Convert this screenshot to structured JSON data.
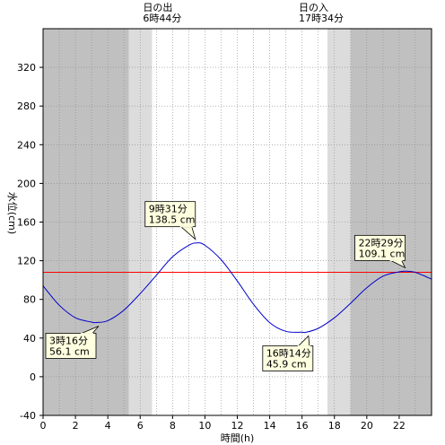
{
  "chart_data": {
    "type": "line",
    "xlabel": "時間(h)",
    "ylabel": "水位(cm)",
    "xlim": [
      0,
      24
    ],
    "ylim": [
      -40,
      360
    ],
    "x_ticks": [
      "0",
      "2",
      "4",
      "6",
      "8",
      "10",
      "12",
      "14",
      "16",
      "18",
      "20",
      "22"
    ],
    "y_ticks": [
      "-40",
      "0",
      "40",
      "80",
      "120",
      "160",
      "200",
      "240",
      "280",
      "320"
    ],
    "colors": {
      "curve": "#0000cc",
      "reference": "#ff0000",
      "night": "#c0c0c0",
      "twilight": "#dcdcdc",
      "callout_fill": "#ffffe0"
    },
    "reference_level": 108,
    "sunrise": {
      "label": "日の出",
      "time_label": "6時44分",
      "hour": 6.73,
      "twilight_start": 5.3
    },
    "sunset": {
      "label": "日の入",
      "time_label": "17時34分",
      "hour": 17.57,
      "twilight_end": 19.0
    },
    "series": [
      {
        "x": [
          0,
          1,
          2,
          3,
          3.27,
          4,
          5,
          6,
          7,
          8,
          9,
          9.52,
          10,
          11,
          12,
          13,
          14,
          15,
          16,
          16.23,
          17,
          18,
          19,
          20,
          21,
          22,
          22.48,
          23,
          24
        ],
        "values": [
          94,
          74,
          61,
          56.5,
          56.1,
          58,
          69,
          86,
          105,
          124,
          136,
          138.5,
          136,
          121,
          99,
          75,
          56,
          47,
          46,
          45.9,
          50,
          61,
          76,
          92,
          104,
          108.5,
          109.1,
          108,
          101
        ]
      }
    ],
    "annotations": [
      {
        "time": "3時16分",
        "value": "56.1 cm",
        "x": 3.27,
        "y": 56.1,
        "side": "below"
      },
      {
        "time": "9時31分",
        "value": "138.5 cm",
        "x": 9.52,
        "y": 138.5,
        "side": "above"
      },
      {
        "time": "16時14分",
        "value": "45.9 cm",
        "x": 16.23,
        "y": 45.9,
        "side": "below"
      },
      {
        "time": "22時29分",
        "value": "109.1 cm",
        "x": 22.48,
        "y": 109.1,
        "side": "above"
      }
    ]
  }
}
